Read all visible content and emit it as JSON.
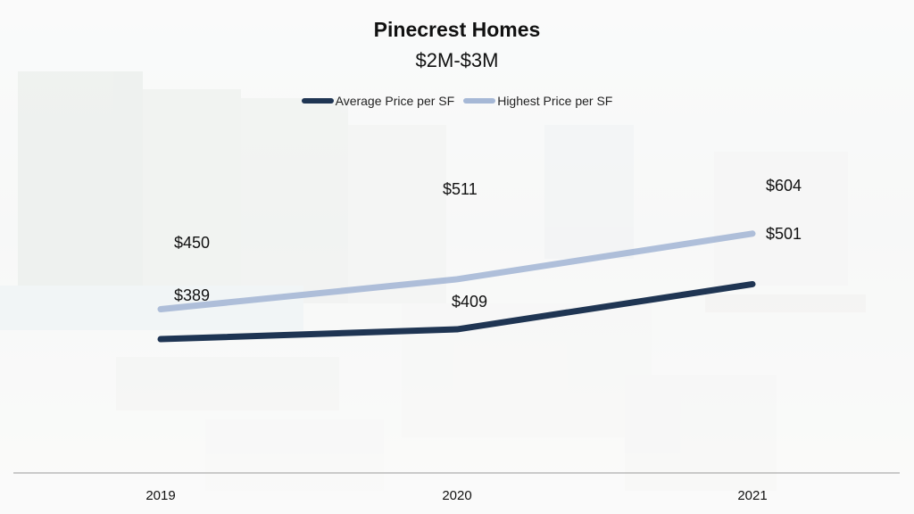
{
  "chart_data": {
    "type": "line",
    "title": "Pinecrest Homes",
    "subtitle": "$2M-$3M",
    "categories": [
      "2019",
      "2020",
      "2021"
    ],
    "series": [
      {
        "name": "Average Price per SF",
        "values": [
          389,
          409,
          501
        ],
        "labels": [
          "$389",
          "$409",
          "$501"
        ],
        "color": "#1f3553"
      },
      {
        "name": "Highest Price per SF",
        "values": [
          450,
          511,
          604
        ],
        "labels": [
          "$450",
          "$511",
          "$604"
        ],
        "color": "#a6b8d6"
      }
    ],
    "grid": false,
    "legend_position": "top"
  }
}
